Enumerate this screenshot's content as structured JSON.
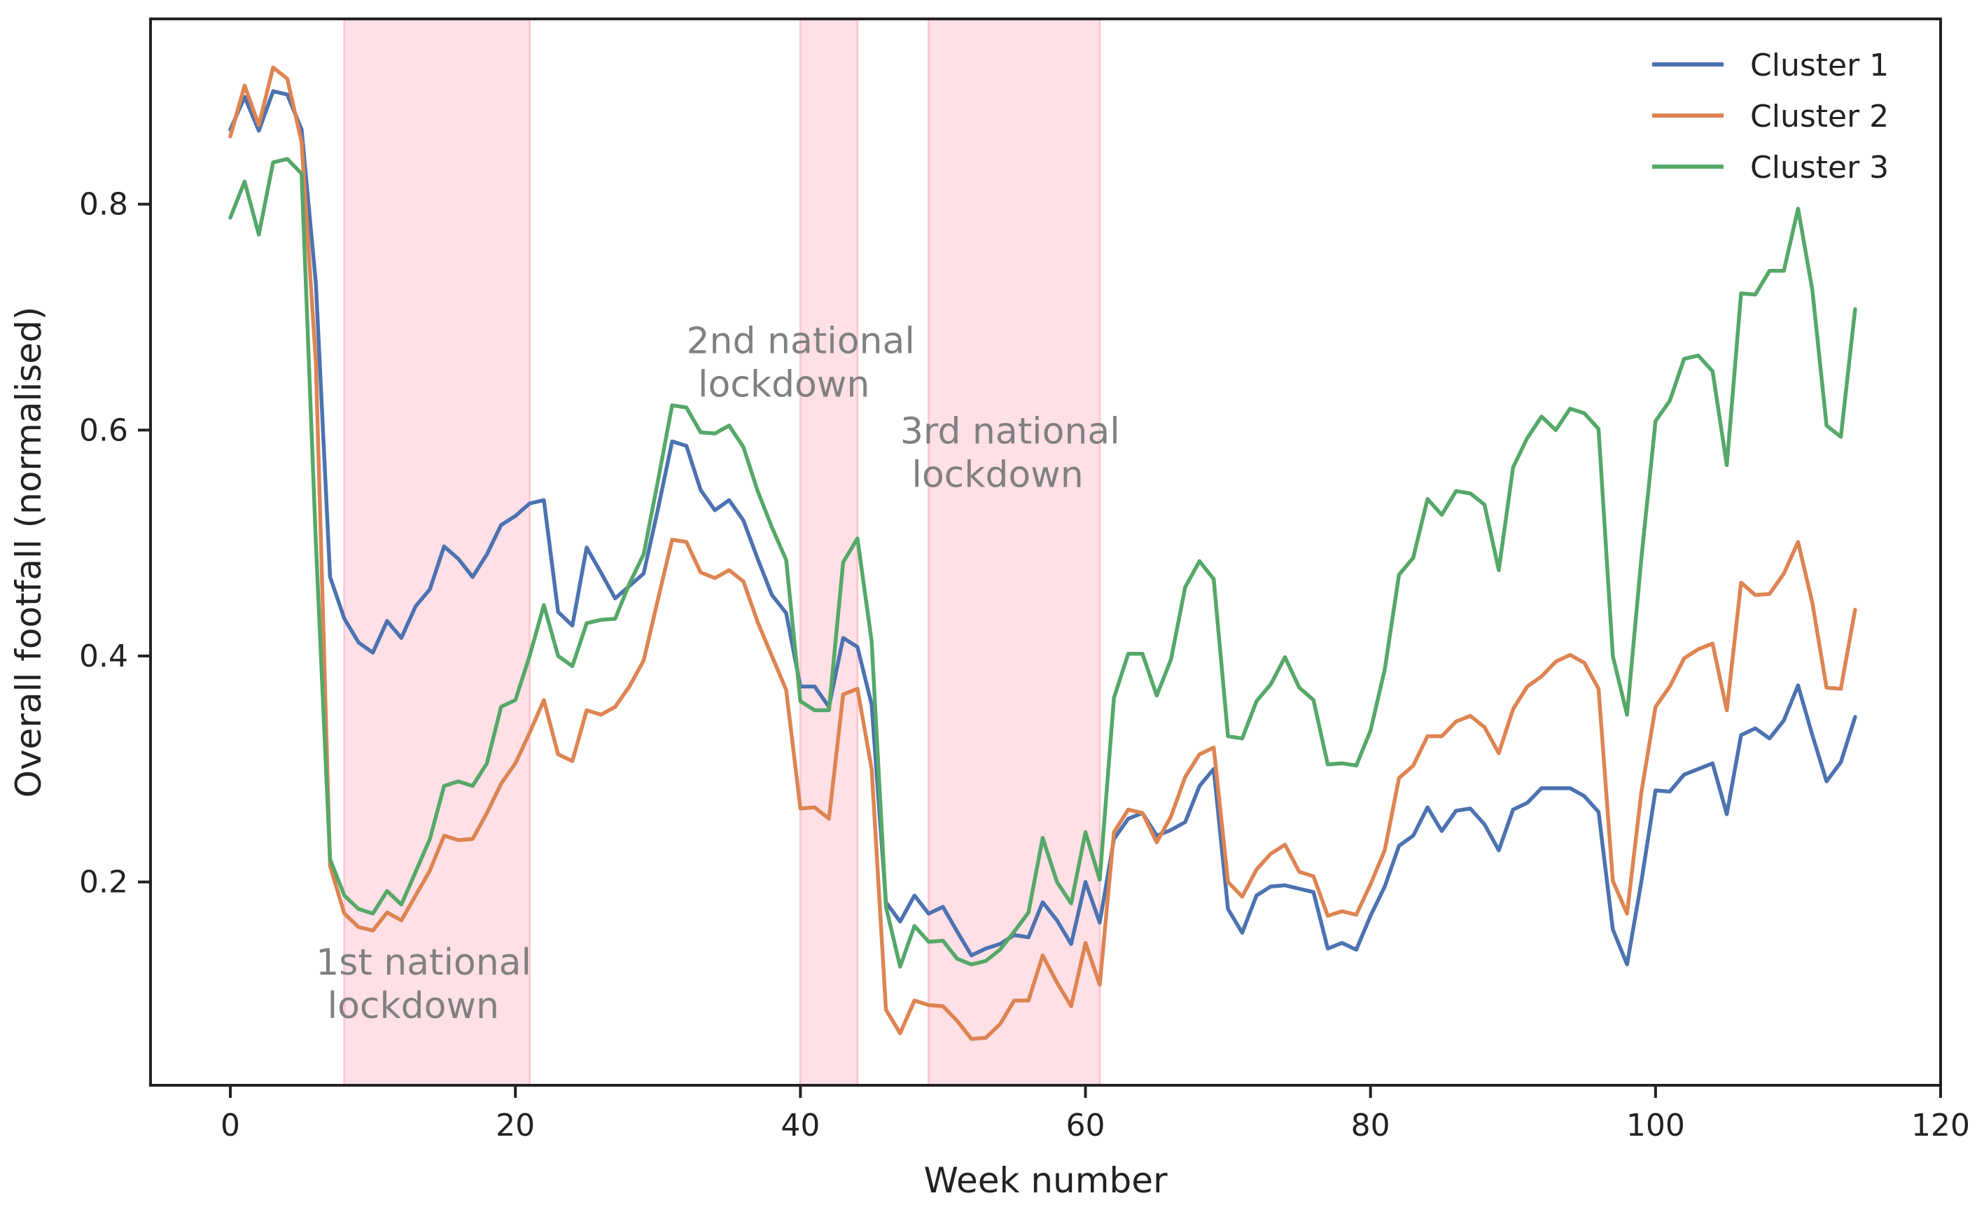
{
  "chart_data": {
    "type": "line",
    "title": "",
    "xlabel": "Week number",
    "ylabel": "Overall footfall (normalised)",
    "xlim": [
      -5.6,
      120
    ],
    "ylim": [
      0.02,
      0.964
    ],
    "xticks": [
      0,
      20,
      40,
      60,
      80,
      100,
      120
    ],
    "yticks": [
      0.2,
      0.4,
      0.6,
      0.8
    ],
    "grid": false,
    "legend_position": "top-right",
    "shaded_regions": [
      {
        "x0": 8,
        "x1": 21,
        "color": "#ffe0e6"
      },
      {
        "x0": 40,
        "x1": 44,
        "color": "#ffe0e6"
      },
      {
        "x0": 49,
        "x1": 61,
        "color": "#ffe0e6"
      }
    ],
    "annotations": [
      {
        "lines": [
          "1st national",
          " lockdown"
        ],
        "x": 6,
        "y": 0.118
      },
      {
        "lines": [
          "2nd national",
          " lockdown"
        ],
        "x": 32,
        "y": 0.668
      },
      {
        "lines": [
          "3rd national",
          " lockdown"
        ],
        "x": 47,
        "y": 0.588
      }
    ],
    "series": [
      {
        "name": "Cluster 1",
        "color": "#4c72b0",
        "values": [
          0.866,
          0.895,
          0.865,
          0.9,
          0.897,
          0.866,
          0.73,
          0.47,
          0.433,
          0.412,
          0.403,
          0.431,
          0.416,
          0.444,
          0.459,
          0.497,
          0.486,
          0.47,
          0.49,
          0.516,
          0.524,
          0.535,
          0.538,
          0.439,
          0.427,
          0.496,
          0.474,
          0.451,
          0.462,
          0.473,
          0.53,
          0.59,
          0.586,
          0.547,
          0.529,
          0.538,
          0.52,
          0.486,
          0.454,
          0.438,
          0.373,
          0.373,
          0.355,
          0.416,
          0.408,
          0.357,
          0.182,
          0.165,
          0.188,
          0.172,
          0.178,
          0.156,
          0.135,
          0.141,
          0.145,
          0.153,
          0.151,
          0.182,
          0.166,
          0.145,
          0.2,
          0.164,
          0.238,
          0.256,
          0.261,
          0.241,
          0.246,
          0.253,
          0.285,
          0.3,
          0.176,
          0.155,
          0.188,
          0.196,
          0.197,
          0.194,
          0.191,
          0.141,
          0.146,
          0.14,
          0.17,
          0.196,
          0.232,
          0.241,
          0.266,
          0.245,
          0.263,
          0.265,
          0.251,
          0.228,
          0.264,
          0.27,
          0.283,
          0.283,
          0.283,
          0.276,
          0.262,
          0.158,
          0.127,
          0.2,
          0.281,
          0.28,
          0.295,
          0.3,
          0.305,
          0.26,
          0.33,
          0.336,
          0.327,
          0.343,
          0.374,
          0.33,
          0.289,
          0.306,
          0.346
        ]
      },
      {
        "name": "Cluster 2",
        "color": "#dd8452",
        "values": [
          0.86,
          0.905,
          0.87,
          0.921,
          0.911,
          0.855,
          0.66,
          0.214,
          0.172,
          0.16,
          0.157,
          0.173,
          0.166,
          0.188,
          0.21,
          0.241,
          0.237,
          0.238,
          0.261,
          0.287,
          0.305,
          0.332,
          0.361,
          0.313,
          0.307,
          0.352,
          0.348,
          0.355,
          0.373,
          0.396,
          0.45,
          0.503,
          0.501,
          0.474,
          0.469,
          0.476,
          0.466,
          0.43,
          0.4,
          0.37,
          0.265,
          0.266,
          0.256,
          0.366,
          0.371,
          0.3,
          0.087,
          0.066,
          0.095,
          0.091,
          0.09,
          0.077,
          0.061,
          0.062,
          0.074,
          0.095,
          0.095,
          0.135,
          0.111,
          0.09,
          0.146,
          0.109,
          0.244,
          0.264,
          0.261,
          0.235,
          0.258,
          0.293,
          0.313,
          0.319,
          0.2,
          0.187,
          0.211,
          0.225,
          0.233,
          0.209,
          0.205,
          0.17,
          0.174,
          0.171,
          0.198,
          0.228,
          0.292,
          0.303,
          0.329,
          0.329,
          0.342,
          0.347,
          0.337,
          0.314,
          0.353,
          0.373,
          0.382,
          0.395,
          0.401,
          0.394,
          0.371,
          0.201,
          0.172,
          0.279,
          0.355,
          0.373,
          0.398,
          0.406,
          0.411,
          0.352,
          0.465,
          0.454,
          0.455,
          0.473,
          0.501,
          0.447,
          0.372,
          0.371,
          0.441
        ]
      },
      {
        "name": "Cluster 3",
        "color": "#55a868",
        "values": [
          0.788,
          0.82,
          0.773,
          0.837,
          0.84,
          0.827,
          0.5,
          0.22,
          0.188,
          0.176,
          0.172,
          0.192,
          0.18,
          0.209,
          0.238,
          0.285,
          0.289,
          0.285,
          0.305,
          0.355,
          0.361,
          0.4,
          0.445,
          0.4,
          0.391,
          0.429,
          0.432,
          0.433,
          0.464,
          0.49,
          0.555,
          0.622,
          0.62,
          0.598,
          0.597,
          0.604,
          0.585,
          0.546,
          0.514,
          0.485,
          0.36,
          0.352,
          0.352,
          0.483,
          0.504,
          0.413,
          0.178,
          0.125,
          0.161,
          0.147,
          0.148,
          0.132,
          0.127,
          0.13,
          0.14,
          0.156,
          0.173,
          0.239,
          0.2,
          0.181,
          0.244,
          0.202,
          0.363,
          0.402,
          0.402,
          0.365,
          0.397,
          0.461,
          0.484,
          0.468,
          0.329,
          0.327,
          0.36,
          0.375,
          0.399,
          0.372,
          0.361,
          0.304,
          0.305,
          0.303,
          0.334,
          0.388,
          0.472,
          0.487,
          0.539,
          0.525,
          0.546,
          0.544,
          0.534,
          0.476,
          0.567,
          0.593,
          0.612,
          0.6,
          0.619,
          0.615,
          0.601,
          0.4,
          0.348,
          0.486,
          0.608,
          0.626,
          0.663,
          0.666,
          0.652,
          0.569,
          0.721,
          0.72,
          0.741,
          0.741,
          0.796,
          0.724,
          0.604,
          0.594,
          0.707
        ]
      }
    ]
  }
}
